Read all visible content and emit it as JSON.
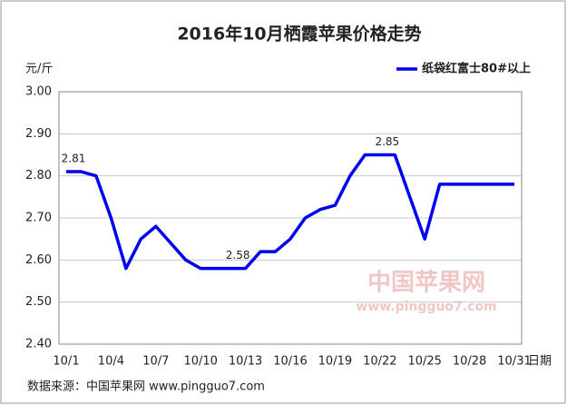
{
  "chart_data": {
    "type": "line",
    "title": "2016年10月栖霞苹果价格走势",
    "y_unit": "元/斤",
    "x_unit": "日期",
    "source": "数据来源：中国苹果网 www.pingguo7.com",
    "watermark": "中国苹果网",
    "watermark_url": "www.pingguo7.com",
    "categories": [
      "10/1",
      null,
      null,
      "10/4",
      null,
      null,
      "10/7",
      null,
      null,
      "10/10",
      null,
      null,
      "10/13",
      null,
      null,
      "10/16",
      null,
      null,
      "10/19",
      null,
      null,
      "10/22",
      null,
      null,
      "10/25",
      null,
      null,
      "10/28",
      null,
      null,
      "10/31"
    ],
    "series": [
      {
        "name": "纸袋红富士80#以上",
        "color": "#0000ee",
        "values": [
          2.81,
          2.81,
          2.8,
          2.7,
          2.58,
          2.65,
          2.68,
          2.64,
          2.6,
          2.58,
          2.58,
          2.58,
          2.58,
          2.62,
          2.62,
          2.65,
          2.7,
          2.72,
          2.73,
          2.8,
          2.85,
          2.85,
          2.85,
          2.75,
          2.65,
          2.78,
          2.78,
          2.78,
          2.78,
          2.78,
          2.78
        ],
        "value_labels": [
          "2.81",
          null,
          null,
          null,
          null,
          null,
          null,
          null,
          null,
          null,
          null,
          "2.58",
          null,
          null,
          null,
          null,
          null,
          null,
          null,
          null,
          null,
          "2.85",
          null,
          null,
          null,
          null,
          null,
          null,
          null,
          null,
          null
        ]
      }
    ],
    "ylim": [
      2.4,
      3.0
    ],
    "yticks": [
      {
        "value": 2.4,
        "label": "2.40"
      },
      {
        "value": 2.5,
        "label": "2.50"
      },
      {
        "value": 2.6,
        "label": "2.60"
      },
      {
        "value": 2.7,
        "label": "2.70"
      },
      {
        "value": 2.8,
        "label": "2.80"
      },
      {
        "value": 2.9,
        "label": "2.90"
      },
      {
        "value": 3.0,
        "label": "3.00"
      }
    ],
    "grid": true,
    "legend": "top-right"
  }
}
